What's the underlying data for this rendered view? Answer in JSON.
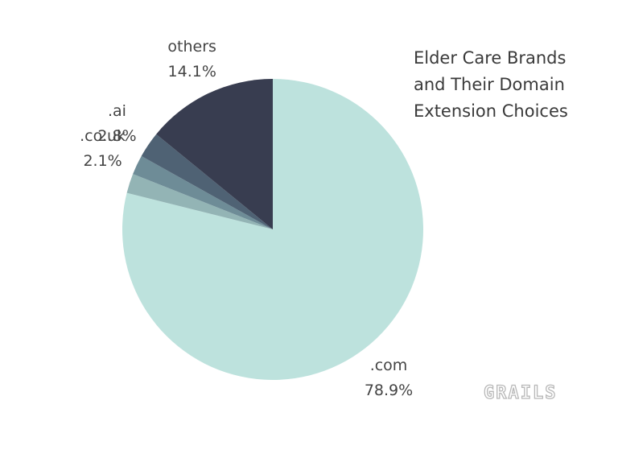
{
  "chart_data": {
    "type": "pie",
    "title": "Elder Care Brands and Their Domain Extension Choices",
    "categories": [
      ".com",
      null,
      ".co.uk",
      ".ai",
      "others"
    ],
    "values": [
      78.9,
      2.1,
      2.1,
      2.8,
      14.1
    ],
    "value_labels": [
      "78.9%",
      null,
      "2.1%",
      "2.8%",
      "14.1%"
    ],
    "colors": [
      "#bde2dd",
      "#93b4b5",
      "#6e8c97",
      "#4f6274",
      "#383d50"
    ],
    "start_angle": "top",
    "direction": "clockwise"
  },
  "watermark": "GRAILS"
}
